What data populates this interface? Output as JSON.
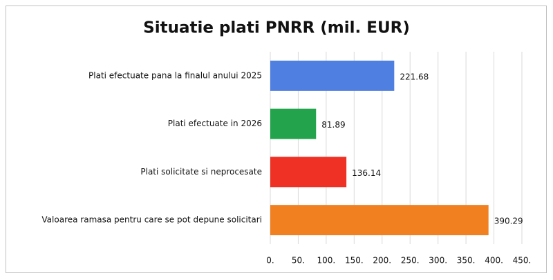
{
  "chart_data": {
    "type": "barh",
    "title": "Situatie plati PNRR (mil. EUR)",
    "categories": [
      "Plati efectuate pana la finalul anului 2025",
      "Plati efectuate in 2026",
      "Plati solicitate si neprocesate",
      "Valoarea ramasa pentru care se pot depune solicitari"
    ],
    "values": [
      221.68,
      81.89,
      136.14,
      390.29
    ],
    "colors": [
      "#4f7fe0",
      "#22a34c",
      "#ee3124",
      "#f08020"
    ],
    "xlim": [
      0,
      450
    ],
    "xticks": [
      {
        "value": 0,
        "label": "0."
      },
      {
        "value": 50,
        "label": "50."
      },
      {
        "value": 100,
        "label": "100."
      },
      {
        "value": 150,
        "label": "150."
      },
      {
        "value": 200,
        "label": "200."
      },
      {
        "value": 250,
        "label": "250."
      },
      {
        "value": 300,
        "label": "300."
      },
      {
        "value": 350,
        "label": "350."
      },
      {
        "value": 400,
        "label": "400."
      },
      {
        "value": 450,
        "label": "450."
      }
    ],
    "grid": true
  }
}
